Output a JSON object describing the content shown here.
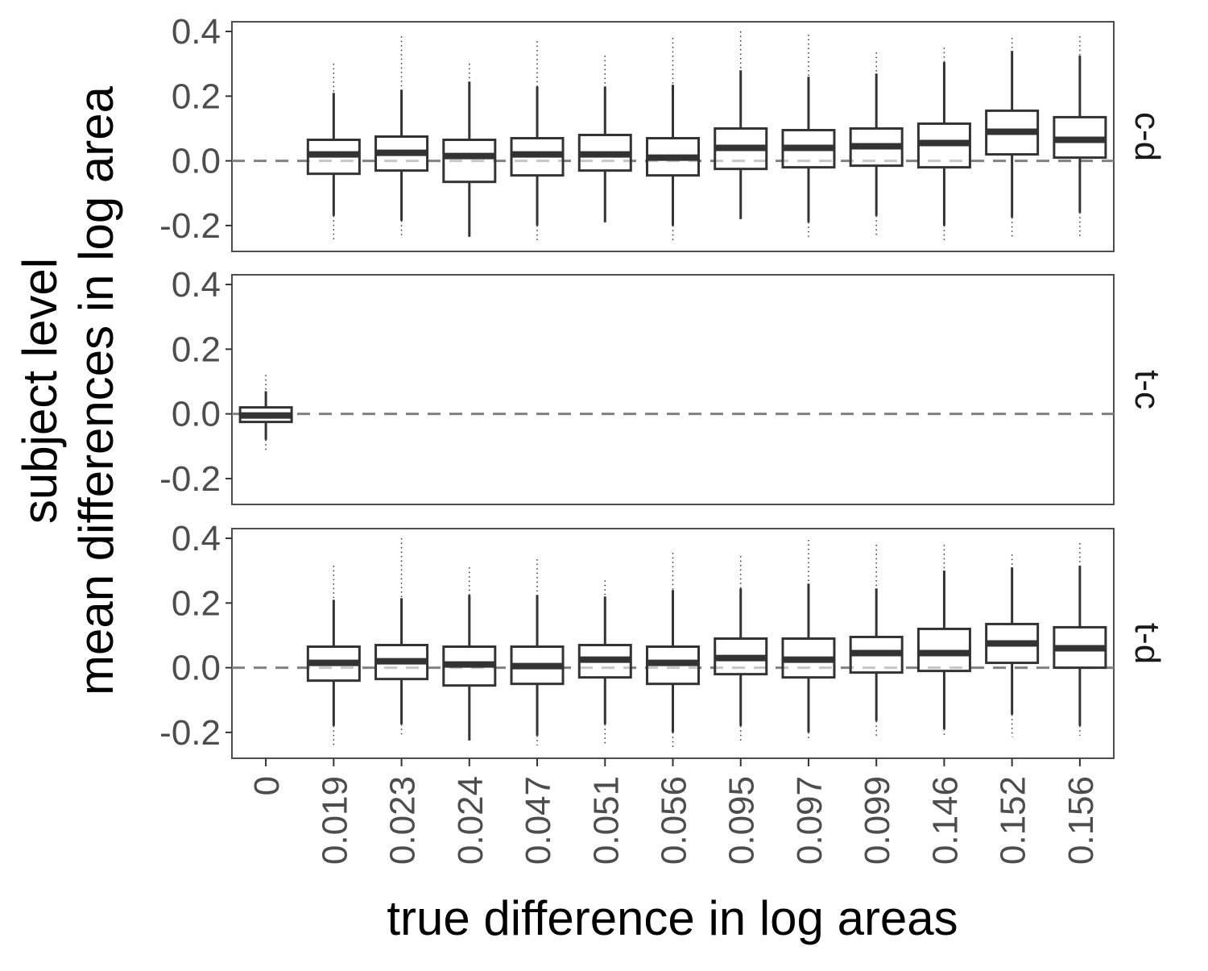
{
  "chart_data": {
    "type": "boxplot",
    "xlabel": "true difference in log areas",
    "ylabel_lines": [
      "subject level",
      "mean differences in log area"
    ],
    "categories": [
      "0",
      "0.019",
      "0.023",
      "0.024",
      "0.047",
      "0.051",
      "0.056",
      "0.095",
      "0.097",
      "0.099",
      "0.146",
      "0.152",
      "0.156"
    ],
    "y_ticks": [
      0.4,
      0.2,
      0.0,
      -0.2
    ],
    "y_tick_labels": [
      "0.4",
      "0.2",
      "0.0",
      "-0.2"
    ],
    "ylim": [
      -0.28,
      0.43
    ],
    "reference_line": 0.0,
    "grid": false,
    "colors": {
      "box": "#333333",
      "reference": "#808080",
      "frame": "#4d4d4d"
    },
    "panels": [
      {
        "strip": "c-d",
        "boxes": [
          null,
          {
            "q1": -0.04,
            "median": 0.02,
            "q3": 0.065,
            "whisker_low": -0.17,
            "whisker_high": 0.21,
            "outlier_low": -0.245,
            "outlier_high": 0.3
          },
          {
            "q1": -0.03,
            "median": 0.025,
            "q3": 0.075,
            "whisker_low": -0.185,
            "whisker_high": 0.22,
            "outlier_low": -0.24,
            "outlier_high": 0.385
          },
          {
            "q1": -0.065,
            "median": 0.015,
            "q3": 0.065,
            "whisker_low": -0.235,
            "whisker_high": 0.245,
            "outlier_low": -0.235,
            "outlier_high": 0.3
          },
          {
            "q1": -0.045,
            "median": 0.02,
            "q3": 0.07,
            "whisker_low": -0.2,
            "whisker_high": 0.23,
            "outlier_low": -0.245,
            "outlier_high": 0.37
          },
          {
            "q1": -0.03,
            "median": 0.02,
            "q3": 0.08,
            "whisker_low": -0.19,
            "whisker_high": 0.23,
            "outlier_low": -0.19,
            "outlier_high": 0.325
          },
          {
            "q1": -0.045,
            "median": 0.01,
            "q3": 0.07,
            "whisker_low": -0.2,
            "whisker_high": 0.235,
            "outlier_low": -0.245,
            "outlier_high": 0.38
          },
          {
            "q1": -0.025,
            "median": 0.04,
            "q3": 0.1,
            "whisker_low": -0.18,
            "whisker_high": 0.28,
            "outlier_low": -0.18,
            "outlier_high": 0.4
          },
          {
            "q1": -0.02,
            "median": 0.04,
            "q3": 0.095,
            "whisker_low": -0.19,
            "whisker_high": 0.26,
            "outlier_low": -0.235,
            "outlier_high": 0.39
          },
          {
            "q1": -0.015,
            "median": 0.045,
            "q3": 0.1,
            "whisker_low": -0.17,
            "whisker_high": 0.27,
            "outlier_low": -0.235,
            "outlier_high": 0.335
          },
          {
            "q1": -0.02,
            "median": 0.055,
            "q3": 0.115,
            "whisker_low": -0.2,
            "whisker_high": 0.305,
            "outlier_low": -0.25,
            "outlier_high": 0.35
          },
          {
            "q1": 0.02,
            "median": 0.09,
            "q3": 0.155,
            "whisker_low": -0.175,
            "whisker_high": 0.34,
            "outlier_low": -0.235,
            "outlier_high": 0.38
          },
          {
            "q1": 0.01,
            "median": 0.065,
            "q3": 0.135,
            "whisker_low": -0.16,
            "whisker_high": 0.325,
            "outlier_low": -0.24,
            "outlier_high": 0.385
          }
        ]
      },
      {
        "strip": "t-c",
        "boxes": [
          {
            "q1": -0.025,
            "median": -0.005,
            "q3": 0.02,
            "whisker_low": -0.08,
            "whisker_high": 0.07,
            "outlier_low": -0.115,
            "outlier_high": 0.12
          },
          null,
          null,
          null,
          null,
          null,
          null,
          null,
          null,
          null,
          null,
          null,
          null
        ]
      },
      {
        "strip": "t-d",
        "boxes": [
          null,
          {
            "q1": -0.04,
            "median": 0.015,
            "q3": 0.065,
            "whisker_low": -0.18,
            "whisker_high": 0.21,
            "outlier_low": -0.24,
            "outlier_high": 0.315
          },
          {
            "q1": -0.035,
            "median": 0.02,
            "q3": 0.07,
            "whisker_low": -0.175,
            "whisker_high": 0.215,
            "outlier_low": -0.215,
            "outlier_high": 0.4
          },
          {
            "q1": -0.055,
            "median": 0.01,
            "q3": 0.065,
            "whisker_low": -0.225,
            "whisker_high": 0.225,
            "outlier_low": -0.225,
            "outlier_high": 0.31
          },
          {
            "q1": -0.05,
            "median": 0.005,
            "q3": 0.065,
            "whisker_low": -0.21,
            "whisker_high": 0.225,
            "outlier_low": -0.24,
            "outlier_high": 0.335
          },
          {
            "q1": -0.03,
            "median": 0.025,
            "q3": 0.07,
            "whisker_low": -0.175,
            "whisker_high": 0.22,
            "outlier_low": -0.235,
            "outlier_high": 0.27
          },
          {
            "q1": -0.05,
            "median": 0.015,
            "q3": 0.065,
            "whisker_low": -0.2,
            "whisker_high": 0.24,
            "outlier_low": -0.245,
            "outlier_high": 0.355
          },
          {
            "q1": -0.02,
            "median": 0.03,
            "q3": 0.09,
            "whisker_low": -0.18,
            "whisker_high": 0.245,
            "outlier_low": -0.235,
            "outlier_high": 0.345
          },
          {
            "q1": -0.03,
            "median": 0.025,
            "q3": 0.09,
            "whisker_low": -0.2,
            "whisker_high": 0.26,
            "outlier_low": -0.225,
            "outlier_high": 0.395
          },
          {
            "q1": -0.015,
            "median": 0.045,
            "q3": 0.095,
            "whisker_low": -0.165,
            "whisker_high": 0.245,
            "outlier_low": -0.21,
            "outlier_high": 0.38
          },
          {
            "q1": -0.01,
            "median": 0.045,
            "q3": 0.12,
            "whisker_low": -0.19,
            "whisker_high": 0.3,
            "outlier_low": -0.21,
            "outlier_high": 0.38
          },
          {
            "q1": 0.015,
            "median": 0.075,
            "q3": 0.135,
            "whisker_low": -0.145,
            "whisker_high": 0.31,
            "outlier_low": -0.215,
            "outlier_high": 0.35
          },
          {
            "q1": 0.0,
            "median": 0.06,
            "q3": 0.125,
            "whisker_low": -0.18,
            "whisker_high": 0.315,
            "outlier_low": -0.21,
            "outlier_high": 0.385
          }
        ]
      }
    ]
  }
}
